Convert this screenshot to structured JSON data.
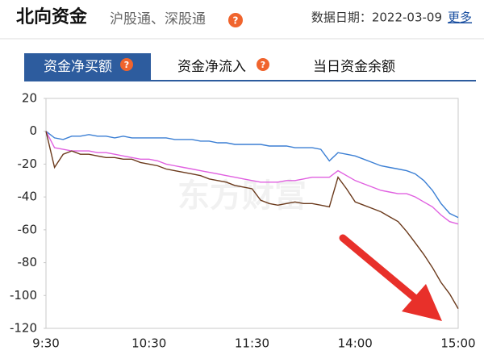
{
  "header": {
    "title": "北向资金",
    "subtitle": "沪股通、深股通",
    "date_label": "数据日期：2022-03-09",
    "more": "更多"
  },
  "tabs": [
    "资金净买额",
    "资金净流入",
    "当日资金余额"
  ],
  "chart_data": {
    "type": "line",
    "watermark": "东方财富",
    "categories": [
      "9:30",
      null,
      null,
      null,
      null,
      null,
      null,
      null,
      null,
      null,
      null,
      null,
      "10:30",
      null,
      null,
      null,
      null,
      null,
      null,
      null,
      null,
      null,
      null,
      null,
      "11:30",
      null,
      null,
      null,
      null,
      null,
      null,
      null,
      null,
      null,
      null,
      null,
      "14:00",
      null,
      null,
      null,
      null,
      null,
      null,
      null,
      null,
      null,
      null,
      null,
      "15:00"
    ],
    "series": [
      {
        "color": "#3b7fd4",
        "values": [
          0,
          -4,
          -5,
          -3,
          -3,
          -2,
          -3,
          -3,
          -4,
          -3,
          -4,
          -4,
          -4,
          -4,
          -4,
          -5,
          -5,
          -5,
          -6,
          -6,
          -7,
          -7,
          -8,
          -8,
          -8,
          -8,
          -9,
          -9,
          -9,
          -10,
          -10,
          -10,
          -11,
          -18,
          -13,
          -14,
          -15,
          -17,
          -19,
          -21,
          -22,
          -23,
          -24,
          -26,
          -30,
          -36,
          -44,
          -50,
          -52.5
        ]
      },
      {
        "color": "#e060e0",
        "values": [
          0,
          -10,
          -11,
          -12,
          -12,
          -12,
          -13,
          -13,
          -14,
          -15,
          -16,
          -17,
          -17,
          -18,
          -20,
          -21,
          -22,
          -23,
          -24,
          -25,
          -26,
          -27,
          -28,
          -29,
          -30,
          -31,
          -31,
          -31,
          -30,
          -30,
          -29,
          -28,
          -28,
          -28,
          -24,
          -27,
          -30,
          -32,
          -34,
          -36,
          -37,
          -38,
          -38,
          -40,
          -43,
          -46,
          -51,
          -55,
          -56.5
        ]
      },
      {
        "color": "#6b3a1c",
        "values": [
          0,
          -22,
          -14,
          -12,
          -14,
          -14,
          -15,
          -16,
          -16,
          -17,
          -17,
          -19,
          -20,
          -21,
          -23,
          -24,
          -25,
          -26,
          -27,
          -29,
          -30,
          -31,
          -33,
          -34,
          -35,
          -42,
          -44,
          -45,
          -44,
          -43,
          -44,
          -44,
          -45,
          -46,
          -28,
          -35,
          -43,
          -45,
          -47,
          -49,
          -52,
          -55,
          -61,
          -68,
          -75,
          -83,
          -92,
          -99,
          -108
        ]
      }
    ],
    "ylim": [
      -120,
      20
    ],
    "yticks": [
      20,
      0,
      -20,
      -40,
      -60,
      -80,
      -100,
      -120
    ]
  }
}
